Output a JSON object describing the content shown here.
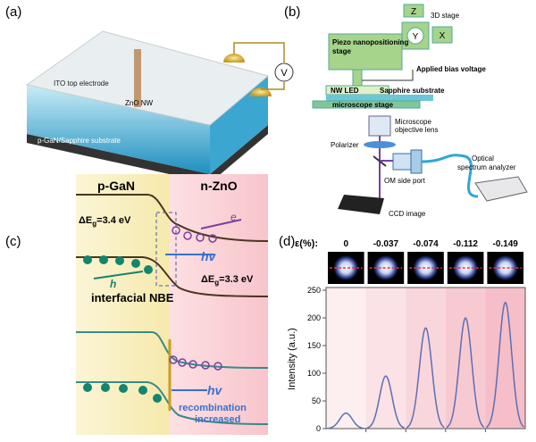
{
  "panel_a": {
    "label": "(a)",
    "ito": "ITO top electrode",
    "nanowire": "ZnO NW",
    "meter": "V",
    "substrate": "p-GaN/Sapphire substrate"
  },
  "panel_b": {
    "label": "(b)",
    "stage_axes": [
      "Z",
      "Y",
      "X"
    ],
    "stage": "3D stage",
    "piezo": [
      "Piezo nanopositioning",
      "stage"
    ],
    "bias": "Applied bias voltage",
    "led": "NW LED",
    "sapphire": "Sapphire substrate",
    "microscope_stage": "microscope stage",
    "objective": [
      "Microscope",
      "objective lens"
    ],
    "polarizer": "Polarizer",
    "side_port": "OM side port",
    "analyzer": [
      "Optical",
      "spectrum analyzer"
    ],
    "ccd": "CCD image"
  },
  "panel_c": {
    "label": "(c)",
    "p_side": "p-GaN",
    "n_side": "n-ZnO",
    "gap_p": {
      "symbol": "ΔE",
      "sub": "g",
      "value": "=3.4 eV"
    },
    "gap_n": {
      "symbol": "ΔE",
      "sub": "g",
      "value": "=3.3 eV"
    },
    "electron": "e",
    "hole": "h",
    "photon_top": "hv",
    "interface": "interfacial NBE",
    "photon_bottom": "hv",
    "note": [
      "recombination",
      "increased"
    ]
  },
  "panel_d": {
    "label": "(d)",
    "strain_title": "ε(%):",
    "type": "line",
    "categories": [
      "0",
      "-0.037",
      "-0.074",
      "-0.112",
      "-0.149"
    ],
    "values": [
      28,
      95,
      182,
      200,
      228
    ],
    "ylabel": "Intensity (a.u.)",
    "ylim": [
      0,
      250
    ],
    "yticks": [
      0,
      50,
      100,
      150,
      200,
      250
    ],
    "color": "#5b6fb5"
  }
}
